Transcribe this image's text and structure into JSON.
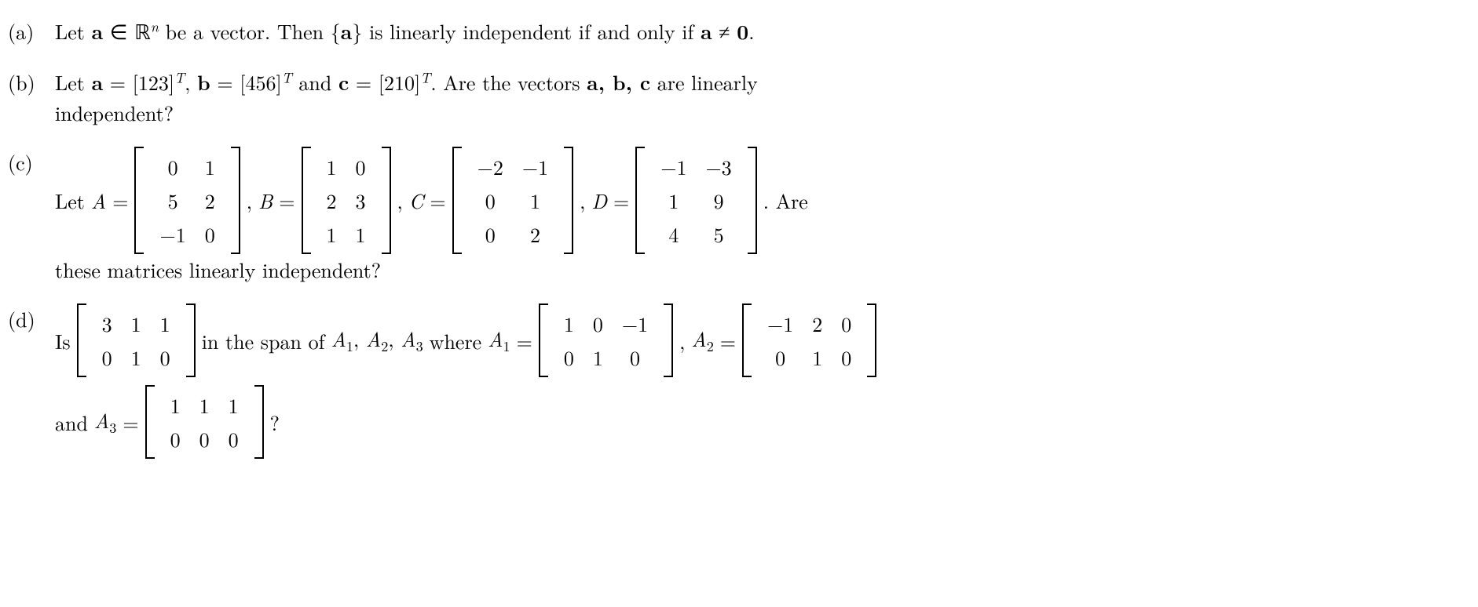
{
  "problems": {
    "a": {
      "label": "(a)",
      "text1": "Let ",
      "vec_a": "a",
      "elem": " ∈ ",
      "Rn_R": "ℝ",
      "Rn_n": "n",
      "text2": " be a vector. Then {",
      "vec_a2": "a",
      "text3": "} is linearly independent if and only if ",
      "vec_a3": "a",
      "neq": " ≠ ",
      "zero": "0",
      "period": "."
    },
    "b": {
      "label": "(b)",
      "text1": "Let ",
      "vec_a": "a",
      "eq1": " = [123]",
      "T1": "T",
      "comma1": ", ",
      "vec_b": "b",
      "eq2": " = [456]",
      "T2": "T",
      "and": " and ",
      "vec_c": "c",
      "eq3": " = [210]",
      "T3": "T",
      "text2": ".  Are the vectors ",
      "abc": "a, b, c",
      "text3": " are linearly",
      "text4": "independent?"
    },
    "c": {
      "label": "(c)",
      "text1": "Let ",
      "A": "A",
      "eq": " = ",
      "matA": [
        [
          "0",
          "1"
        ],
        [
          "5",
          "2"
        ],
        [
          "−1",
          "0"
        ]
      ],
      "B": "B",
      "matB": [
        [
          "1",
          "0"
        ],
        [
          "2",
          "3"
        ],
        [
          "1",
          "1"
        ]
      ],
      "C": "C",
      "matC": [
        [
          "−2",
          "−1"
        ],
        [
          "0",
          "1"
        ],
        [
          "0",
          "2"
        ]
      ],
      "D": "D",
      "matD": [
        [
          "−1",
          "−3"
        ],
        [
          "1",
          "9"
        ],
        [
          "4",
          "5"
        ]
      ],
      "text2": ".  Are",
      "text3": "these matrices linearly independent?",
      "sep": ", "
    },
    "d": {
      "label": "(d)",
      "text1": "Is ",
      "matM": [
        [
          "3",
          "1",
          "1"
        ],
        [
          "0",
          "1",
          "0"
        ]
      ],
      "text2": " in the span of ",
      "A1": "A",
      "A2": "A",
      "A3": "A",
      "s1": "1",
      "s2": "2",
      "s3": "3",
      "where": " where ",
      "eq": " = ",
      "matA1": [
        [
          "1",
          "0",
          "−1"
        ],
        [
          "0",
          "1",
          "0"
        ]
      ],
      "matA2": [
        [
          "−1",
          "2",
          "0"
        ],
        [
          "0",
          "1",
          "0"
        ]
      ],
      "matA3": [
        [
          "1",
          "1",
          "1"
        ],
        [
          "0",
          "0",
          "0"
        ]
      ],
      "and": "and ",
      "q": "?",
      "sep": ", "
    }
  },
  "style": {
    "background": "#ffffff",
    "text_color": "#000000",
    "fontsize": 26
  }
}
